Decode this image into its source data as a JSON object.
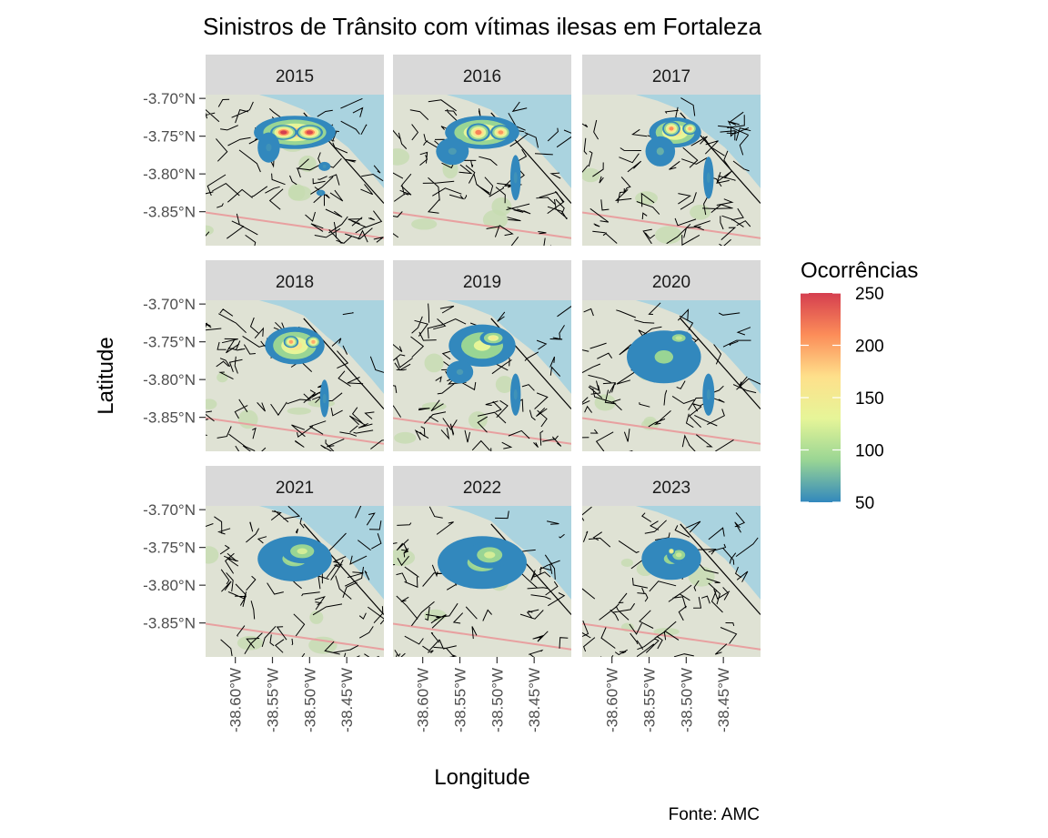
{
  "chart_data": {
    "type": "heatmap",
    "title": "Sinistros de Trânsito com vítimas ilesas em Fortaleza",
    "xlabel": "Longitude",
    "ylabel": "Latitude",
    "caption": "Fonte: AMC",
    "x_ticks": [
      "-38.60°W",
      "-38.55°W",
      "-38.50°W",
      "-38.45°W"
    ],
    "y_ticks": [
      "-3.70°N",
      "-3.75°N",
      "-3.80°N",
      "-3.85°N"
    ],
    "x_tick_values": [
      -38.6,
      -38.55,
      -38.5,
      -38.45
    ],
    "y_tick_values": [
      -3.7,
      -3.75,
      -3.8,
      -3.85
    ],
    "xlim": [
      -38.64,
      -38.4
    ],
    "ylim": [
      -3.895,
      -3.695
    ],
    "legend": {
      "title": "Ocorrências",
      "position": "right",
      "breaks": [
        250,
        200,
        150,
        100,
        50
      ],
      "range": [
        50,
        250
      ],
      "colors": [
        "#3288bd",
        "#99d594",
        "#e6f598",
        "#fee08b",
        "#fc8d59",
        "#d53e4f"
      ]
    },
    "basemap_colors": {
      "land": "#dfe2d4",
      "sea": "#aad3df",
      "road": "#e8a0a0",
      "green": "#c5dcb0"
    },
    "facets": [
      {
        "year": "2015",
        "max": 250,
        "hotspots": [
          {
            "lon": -38.52,
            "lat": -3.745,
            "sx": 0.055,
            "sy": 0.022,
            "level": 180
          },
          {
            "lon": -38.535,
            "lat": -3.745,
            "sx": 0.018,
            "sy": 0.01,
            "level": 250
          },
          {
            "lon": -38.5,
            "lat": -3.745,
            "sx": 0.018,
            "sy": 0.01,
            "level": 245
          },
          {
            "lon": -38.555,
            "lat": -3.765,
            "sx": 0.015,
            "sy": 0.02,
            "level": 55
          },
          {
            "lon": -38.48,
            "lat": -3.79,
            "sx": 0.008,
            "sy": 0.006,
            "level": 55
          },
          {
            "lon": -38.485,
            "lat": -3.825,
            "sx": 0.006,
            "sy": 0.004,
            "level": 55
          }
        ]
      },
      {
        "year": "2016",
        "max": 215,
        "hotspots": [
          {
            "lon": -38.52,
            "lat": -3.745,
            "sx": 0.05,
            "sy": 0.022,
            "level": 170
          },
          {
            "lon": -38.525,
            "lat": -3.745,
            "sx": 0.016,
            "sy": 0.012,
            "level": 215
          },
          {
            "lon": -38.495,
            "lat": -3.745,
            "sx": 0.014,
            "sy": 0.01,
            "level": 205
          },
          {
            "lon": -38.56,
            "lat": -3.77,
            "sx": 0.022,
            "sy": 0.018,
            "level": 60
          },
          {
            "lon": -38.475,
            "lat": -3.805,
            "sx": 0.007,
            "sy": 0.03,
            "level": 55
          }
        ]
      },
      {
        "year": "2017",
        "max": 210,
        "hotspots": [
          {
            "lon": -38.515,
            "lat": -3.745,
            "sx": 0.035,
            "sy": 0.02,
            "level": 170
          },
          {
            "lon": -38.52,
            "lat": -3.74,
            "sx": 0.012,
            "sy": 0.01,
            "level": 210
          },
          {
            "lon": -38.495,
            "lat": -3.74,
            "sx": 0.01,
            "sy": 0.008,
            "level": 190
          },
          {
            "lon": -38.535,
            "lat": -3.77,
            "sx": 0.02,
            "sy": 0.02,
            "level": 70
          },
          {
            "lon": -38.47,
            "lat": -3.805,
            "sx": 0.007,
            "sy": 0.028,
            "level": 55
          }
        ]
      },
      {
        "year": "2018",
        "max": 200,
        "hotspots": [
          {
            "lon": -38.52,
            "lat": -3.755,
            "sx": 0.04,
            "sy": 0.025,
            "level": 160
          },
          {
            "lon": -38.525,
            "lat": -3.75,
            "sx": 0.01,
            "sy": 0.008,
            "level": 200
          },
          {
            "lon": -38.495,
            "lat": -3.75,
            "sx": 0.01,
            "sy": 0.008,
            "level": 195
          },
          {
            "lon": -38.48,
            "lat": -3.825,
            "sx": 0.006,
            "sy": 0.025,
            "level": 55
          }
        ]
      },
      {
        "year": "2019",
        "max": 150,
        "hotspots": [
          {
            "lon": -38.52,
            "lat": -3.755,
            "sx": 0.045,
            "sy": 0.028,
            "level": 130
          },
          {
            "lon": -38.505,
            "lat": -3.745,
            "sx": 0.018,
            "sy": 0.01,
            "level": 150
          },
          {
            "lon": -38.55,
            "lat": -3.79,
            "sx": 0.018,
            "sy": 0.015,
            "level": 60
          },
          {
            "lon": -38.475,
            "lat": -3.82,
            "sx": 0.007,
            "sy": 0.028,
            "level": 55
          }
        ]
      },
      {
        "year": "2020",
        "max": 110,
        "hotspots": [
          {
            "lon": -38.53,
            "lat": -3.77,
            "sx": 0.05,
            "sy": 0.035,
            "level": 90
          },
          {
            "lon": -38.51,
            "lat": -3.745,
            "sx": 0.018,
            "sy": 0.01,
            "level": 110
          },
          {
            "lon": -38.47,
            "lat": -3.82,
            "sx": 0.008,
            "sy": 0.028,
            "level": 55
          }
        ]
      },
      {
        "year": "2021",
        "max": 120,
        "hotspots": [
          {
            "lon": -38.52,
            "lat": -3.765,
            "sx": 0.05,
            "sy": 0.03,
            "level": 95
          },
          {
            "lon": -38.51,
            "lat": -3.755,
            "sx": 0.028,
            "sy": 0.016,
            "level": 120
          }
        ]
      },
      {
        "year": "2022",
        "max": 120,
        "hotspots": [
          {
            "lon": -38.52,
            "lat": -3.77,
            "sx": 0.06,
            "sy": 0.035,
            "level": 95
          },
          {
            "lon": -38.51,
            "lat": -3.76,
            "sx": 0.03,
            "sy": 0.018,
            "level": 120
          }
        ]
      },
      {
        "year": "2023",
        "max": 150,
        "hotspots": [
          {
            "lon": -38.52,
            "lat": -3.765,
            "sx": 0.04,
            "sy": 0.028,
            "level": 90
          },
          {
            "lon": -38.51,
            "lat": -3.76,
            "sx": 0.016,
            "sy": 0.012,
            "level": 115
          },
          {
            "lon": -38.52,
            "lat": -3.755,
            "sx": 0.005,
            "sy": 0.005,
            "level": 150
          }
        ]
      }
    ]
  }
}
